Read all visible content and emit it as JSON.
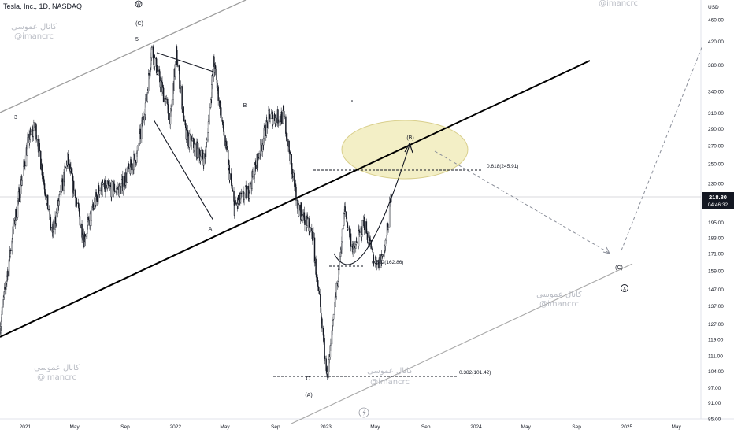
{
  "header": {
    "symbol_title": "Tesla, Inc., 1D, NASDAQ"
  },
  "price_axis": {
    "currency_label": "USD",
    "ticks": [
      "460.00",
      "420.00",
      "380.00",
      "340.00",
      "310.00",
      "290.00",
      "270.00",
      "250.00",
      "230.00",
      "210.00",
      "195.00",
      "183.00",
      "171.00",
      "159.00",
      "147.00",
      "137.00",
      "127.00",
      "119.00",
      "111.00",
      "104.00",
      "97.00",
      "91.00",
      "85.00"
    ],
    "current_price": "218.80",
    "countdown": "04:46:32",
    "current_price_bg": "#131722"
  },
  "time_axis": {
    "ticks": [
      "2021",
      "May",
      "Sep",
      "2022",
      "May",
      "Sep",
      "2023",
      "May",
      "Sep",
      "2024",
      "May",
      "Sep",
      "2025",
      "May"
    ]
  },
  "wave_labels": {
    "w_circled": "W",
    "c_paren_top": "(C)",
    "five": "5",
    "three": "3",
    "a": "A",
    "b": "B",
    "c_small": "C",
    "a_paren": "(A)",
    "b_paren": "(B)",
    "c_paren_right": "(C)",
    "x_circled": "X"
  },
  "fib_levels": {
    "fib_618": "0.618(245.91)",
    "fib_382_mid": "0.382(162.86)",
    "fib_382_low": "0.382(101.42)"
  },
  "watermarks": {
    "arabic": "کانال عموسی",
    "handle": "@imancrc"
  },
  "colors": {
    "candles": "#131722",
    "trendline": "#000000",
    "channel": "#9e9e9e",
    "target_zone_fill": "#f3efc6",
    "target_zone_stroke": "#d9cf8c",
    "watermark": "#b9bcc4",
    "axis_text": "#131722"
  },
  "chart_data": {
    "type": "candlestick",
    "title": "Tesla, Inc., 1D, NASDAQ",
    "y_scale": "log",
    "ylim": [
      85,
      500
    ],
    "xlim": [
      "2020-11-01",
      "2025-06-30"
    ],
    "grid": false,
    "current_price": 218.8,
    "price_path": [
      [
        "2020-11-01",
        125
      ],
      [
        "2020-12-01",
        185
      ],
      [
        "2021-01-08",
        275
      ],
      [
        "2021-01-26",
        293
      ],
      [
        "2021-03-08",
        185
      ],
      [
        "2021-04-14",
        255
      ],
      [
        "2021-05-24",
        182
      ],
      [
        "2021-06-30",
        225
      ],
      [
        "2021-08-19",
        225
      ],
      [
        "2021-09-30",
        260
      ],
      [
        "2021-10-25",
        340
      ],
      [
        "2021-11-04",
        407
      ],
      [
        "2021-12-20",
        300
      ],
      [
        "2022-01-03",
        400
      ],
      [
        "2022-01-27",
        280
      ],
      [
        "2022-03-14",
        255
      ],
      [
        "2022-04-04",
        384
      ],
      [
        "2022-05-24",
        208
      ],
      [
        "2022-06-30",
        225
      ],
      [
        "2022-08-16",
        305
      ],
      [
        "2022-09-21",
        305
      ],
      [
        "2022-10-24",
        210
      ],
      [
        "2022-11-30",
        185
      ],
      [
        "2022-12-20",
        130
      ],
      [
        "2023-01-06",
        102
      ],
      [
        "2023-02-16",
        205
      ],
      [
        "2023-03-10",
        172
      ],
      [
        "2023-04-04",
        195
      ],
      [
        "2023-05-05",
        160
      ],
      [
        "2023-05-25",
        175
      ],
      [
        "2023-06-09",
        218.8
      ]
    ],
    "fib_levels": [
      {
        "label": "0.618(245.91)",
        "price": 245.91
      },
      {
        "label": "0.382(162.86)",
        "price": 162.86
      },
      {
        "label": "0.382(101.42)",
        "price": 101.42
      }
    ],
    "wave_labels": [
      {
        "text": "3",
        "date": "2021-01-20",
        "price": 300
      },
      {
        "text": "5",
        "date": "2021-11-04",
        "price": 430
      },
      {
        "text": "(C)",
        "date": "2021-11-04",
        "price": 470
      },
      {
        "text": "W",
        "date": "2021-11-04",
        "price": 490
      },
      {
        "text": "A",
        "date": "2022-05-24",
        "price": 195
      },
      {
        "text": "B",
        "date": "2022-08-20",
        "price": 330
      },
      {
        "text": "C",
        "date": "2023-01-06",
        "price": 101
      },
      {
        "text": "(A)",
        "date": "2023-01-06",
        "price": 94
      },
      {
        "text": "(B)",
        "date": "2023-09-05",
        "price": 280
      },
      {
        "text": "(C)",
        "date": "2024-11-20",
        "price": 162
      },
      {
        "text": "X",
        "date": "2024-12-10",
        "price": 149
      }
    ],
    "projection": [
      [
        "2023-05-05",
        160
      ],
      [
        "2023-09-05",
        275
      ],
      [
        "2024-10-28",
        172
      ],
      [
        "2025-06-25",
        420
      ]
    ]
  }
}
